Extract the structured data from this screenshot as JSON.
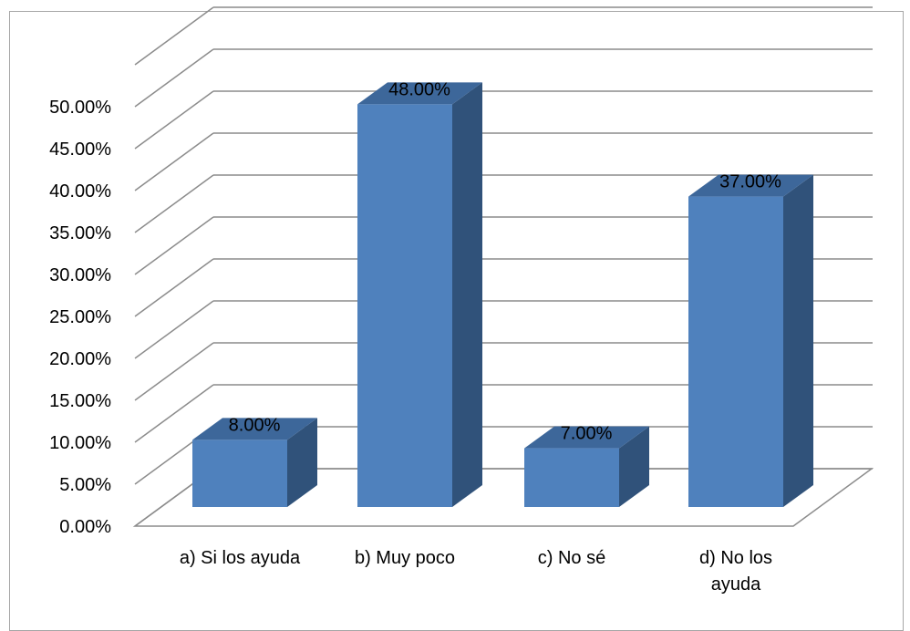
{
  "chart_data": {
    "type": "bar",
    "style": "3d-clustered-column",
    "categories": [
      "a) Si los ayuda",
      "b) Muy poco",
      "c) No sé",
      "d) No los ayuda"
    ],
    "category_lines": [
      [
        "a) Si los ayuda"
      ],
      [
        "b) Muy poco"
      ],
      [
        "c) No sé"
      ],
      [
        "d) No los",
        "ayuda"
      ]
    ],
    "values": [
      8.0,
      48.0,
      7.0,
      37.0
    ],
    "data_labels": [
      "8.00%",
      "48.00%",
      "7.00%",
      "37.00%"
    ],
    "y_ticks": [
      "0.00%",
      "5.00%",
      "10.00%",
      "15.00%",
      "20.00%",
      "25.00%",
      "30.00%",
      "35.00%",
      "40.00%",
      "45.00%",
      "50.00%"
    ],
    "ylim": [
      0,
      50
    ],
    "grid": true,
    "legend": "none",
    "colors": {
      "bar_front": "#4f81bd",
      "bar_side": "#30527a",
      "bar_top": "#3d679a",
      "grid": "#8c8c8c"
    }
  }
}
